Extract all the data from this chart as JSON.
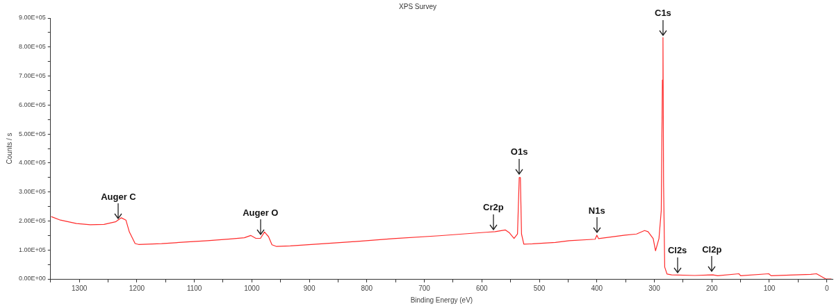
{
  "chart_data": {
    "type": "line",
    "title": "XPS Survey",
    "xlabel": "Binding Energy (eV)",
    "ylabel": "Counts / s",
    "xlim": [
      1350,
      -10
    ],
    "ylim": [
      0,
      900000
    ],
    "xticks": [
      {
        "value": 1350,
        "label": null
      },
      1300,
      {
        "value": 1250,
        "label": null
      },
      1200,
      {
        "value": 1150,
        "label": null
      },
      1100,
      {
        "value": 1050,
        "label": null
      },
      1000,
      {
        "value": 950,
        "label": null
      },
      900,
      {
        "value": 850,
        "label": null
      },
      800,
      {
        "value": 750,
        "label": null
      },
      700,
      {
        "value": 650,
        "label": null
      },
      600,
      {
        "value": 550,
        "label": null
      },
      500,
      {
        "value": 450,
        "label": null
      },
      400,
      {
        "value": 350,
        "label": null
      },
      300,
      {
        "value": 250,
        "label": null
      },
      200,
      {
        "value": 150,
        "label": null
      },
      100,
      {
        "value": 50,
        "label": null
      },
      0
    ],
    "yticks": [
      {
        "value": 0,
        "label": "0.00E+00"
      },
      {
        "value": 50000,
        "label": null
      },
      {
        "value": 100000,
        "label": "1.00E+05"
      },
      {
        "value": 150000,
        "label": null
      },
      {
        "value": 200000,
        "label": "2.00E+05"
      },
      {
        "value": 250000,
        "label": null
      },
      {
        "value": 300000,
        "label": "3.00E+05"
      },
      {
        "value": 350000,
        "label": null
      },
      {
        "value": 400000,
        "label": "4.00E+05"
      },
      {
        "value": 450000,
        "label": null
      },
      {
        "value": 500000,
        "label": "5.00E+05"
      },
      {
        "value": 550000,
        "label": null
      },
      {
        "value": 600000,
        "label": "6.00E+05"
      },
      {
        "value": 650000,
        "label": null
      },
      {
        "value": 700000,
        "label": "7.00E+05"
      },
      {
        "value": 750000,
        "label": null
      },
      {
        "value": 800000,
        "label": "8.00E+05"
      },
      {
        "value": 850000,
        "label": null
      },
      {
        "value": 900000,
        "label": "9.00E+05"
      }
    ],
    "grid": false,
    "legend": false,
    "x": [
      1349,
      1333,
      1305,
      1281,
      1257,
      1237,
      1227,
      1219,
      1213,
      1203,
      1197,
      1157,
      1117,
      1077,
      1037,
      1013,
      1002,
      993,
      985,
      978,
      971,
      965,
      957,
      933,
      834,
      754,
      674,
      593,
      577,
      559,
      552,
      544,
      538,
      535,
      533,
      531,
      527,
      512,
      472,
      448,
      403,
      400,
      397,
      351,
      331,
      317,
      311,
      302,
      298,
      292,
      288,
      286,
      285,
      284,
      282,
      278,
      270,
      230,
      198,
      190,
      153,
      150,
      101,
      97,
      28,
      18,
      2,
      -8
    ],
    "series": [
      {
        "color": "#ff2a2a",
        "values": [
          215000,
          203000,
          191000,
          187000,
          188000,
          197000,
          211000,
          203000,
          162000,
          122000,
          119000,
          122000,
          127000,
          132000,
          138000,
          142000,
          150000,
          140000,
          140000,
          162000,
          146000,
          118000,
          112000,
          114000,
          127000,
          139000,
          149000,
          161000,
          163000,
          169000,
          159000,
          140000,
          155000,
          350000,
          350000,
          155000,
          120000,
          121000,
          126000,
          132000,
          137000,
          151000,
          139000,
          151000,
          155000,
          167000,
          163000,
          139000,
          97000,
          139000,
          236000,
          686000,
          833000,
          334000,
          41000,
          17000,
          14000,
          12000,
          14000,
          11000,
          18000,
          11000,
          18000,
          11000,
          16000,
          18000,
          0,
          0
        ]
      }
    ],
    "annotations": [
      {
        "text": "Auger C",
        "x": 1232,
        "y": 200000
      },
      {
        "text": "Auger O",
        "x": 985,
        "y": 145000
      },
      {
        "text": "Cr2p",
        "x": 580,
        "y": 163000
      },
      {
        "text": "O1s",
        "x": 535,
        "y": 355000
      },
      {
        "text": "C1s",
        "x": 285,
        "y": 833000
      },
      {
        "text": "N1s",
        "x": 400,
        "y": 152000
      },
      {
        "text": "Cl2s",
        "x": 260,
        "y": 14000
      },
      {
        "text": "Cl2p",
        "x": 200,
        "y": 18000
      }
    ]
  }
}
